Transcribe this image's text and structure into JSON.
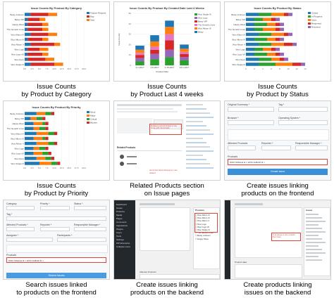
{
  "captions": [
    [
      "Issue Counts",
      "by Product by Category"
    ],
    [
      "Issue Counts",
      "by Product Last 4 weeks"
    ],
    [
      "Issue Counts",
      "by Product by Status"
    ],
    [
      "Issue Counts",
      "by Product by Priority"
    ],
    [
      "Related Products section",
      "on Issue pages"
    ],
    [
      "Create issues linking",
      "products on the frontend"
    ],
    [
      "Search issues linked",
      "to products on the frontend"
    ],
    [
      "Create issues linking",
      "products on the backend"
    ],
    [
      "Create products linking",
      "issues on the backend"
    ]
  ],
  "chart_data": [
    {
      "type": "bar",
      "orientation": "horizontal",
      "stacked": true,
      "title": "Issue Counts By Product By Category",
      "categories": [
        "Betsy Johnson",
        "Betsy VIP",
        "Happy Wear",
        "The Genetic Lives",
        "Wox Album III",
        "Wox Album IV",
        "Wox Album V",
        "Wox Logo",
        "Wox Logo VII",
        "Wox Nexx",
        "Wox Single III"
      ],
      "series": [
        {
          "name": "Feature Request",
          "color": "#1f77b4",
          "values": [
            2,
            1,
            1,
            1,
            2,
            1,
            2,
            1,
            1,
            1,
            2
          ]
        },
        {
          "name": "Bug",
          "color": "#d62728",
          "values": [
            6,
            4,
            5,
            5,
            6,
            5,
            8,
            4,
            5,
            6,
            8
          ]
        },
        {
          "name": "Task",
          "color": "#ff7f0e",
          "values": [
            3,
            2,
            2,
            2,
            3,
            2,
            2,
            3,
            2,
            3,
            3
          ]
        }
      ],
      "xlim": [
        0,
        20
      ],
      "xticks": [
        "0.0",
        "2.5",
        "5.0",
        "7.5",
        "10.0",
        "12.5",
        "15.0",
        "17.5",
        "20.0"
      ]
    },
    {
      "type": "bar",
      "stacked": true,
      "title": "Issue Counts By Product By Created Date Last 4 Weeks",
      "categories": [
        "4-1-2017",
        "4-8-2017",
        "4-15-2017",
        "10-1-2017"
      ],
      "series": [
        {
          "name": "Wox Single III",
          "color": "#2ca02c",
          "values": [
            4,
            6,
            8,
            5
          ]
        },
        {
          "name": "Wox Logo",
          "color": "#9467bd",
          "values": [
            3,
            5,
            7,
            3
          ]
        },
        {
          "name": "Betsy VIP",
          "color": "#d62728",
          "values": [
            3,
            4,
            9,
            3
          ]
        },
        {
          "name": "The Genetic Lives",
          "color": "#e377c2",
          "values": [
            2,
            3,
            6,
            2
          ]
        },
        {
          "name": "Wox Album III",
          "color": "#ff7f0e",
          "values": [
            3,
            5,
            7,
            3
          ]
        },
        {
          "name": "Betsy",
          "color": "#1f77b4",
          "values": [
            4,
            6,
            6,
            4
          ]
        }
      ],
      "ylim": [
        0,
        50
      ],
      "yticks": [
        "0",
        "10",
        "20",
        "30",
        "40",
        "50"
      ],
      "xlabel": "Created Date",
      "ylabel": "Issue Counts"
    },
    {
      "type": "bar",
      "orientation": "horizontal",
      "stacked": true,
      "title": "Issue Counts By Product By Status",
      "categories": [
        "Betsy Johnson",
        "Betsy VIP",
        "Happy Wear",
        "The Genetic Lives",
        "Wox Album III",
        "Wox Album IV",
        "Wox Album V",
        "Wox Logo",
        "Wox Logo VII",
        "Wox Nexx",
        "Wox Single III"
      ],
      "series": [
        {
          "name": "Closed",
          "color": "#1f77b4",
          "values": [
            3,
            2,
            2,
            2,
            3,
            2,
            3,
            2,
            2,
            3,
            3
          ]
        },
        {
          "name": "In Progress",
          "color": "#2ca02c",
          "values": [
            3,
            2,
            3,
            2,
            3,
            3,
            3,
            2,
            3,
            3,
            4
          ]
        },
        {
          "name": "Open",
          "color": "#ff7f0e",
          "values": [
            3,
            2,
            2,
            3,
            3,
            2,
            3,
            2,
            2,
            2,
            4
          ]
        },
        {
          "name": "Reopened",
          "color": "#d62728",
          "values": [
            1,
            1,
            1,
            1,
            1,
            1,
            2,
            1,
            1,
            1,
            2
          ]
        },
        {
          "name": "Resolved",
          "color": "#9467bd",
          "values": [
            1,
            1,
            1,
            1,
            1,
            1,
            1,
            1,
            1,
            1,
            1
          ]
        }
      ],
      "xlim": [
        0,
        14
      ],
      "xticks": [
        "0",
        "2",
        "4",
        "6",
        "8",
        "10",
        "12",
        "14"
      ]
    },
    {
      "type": "bar",
      "orientation": "horizontal",
      "stacked": true,
      "title": "Issue Counts By Product By Priority",
      "categories": [
        "Betsy Johnson",
        "Betsy VIP",
        "Happy Wear",
        "The Genetic Lives",
        "Wox Album III",
        "Wox Album IV",
        "Wox Album V",
        "Wox Logo",
        "Wox Logo VII",
        "Wox Nexx",
        "Wox Single III"
      ],
      "series": [
        {
          "name": "Minor",
          "color": "#1f77b4",
          "values": [
            4,
            2,
            3,
            3,
            4,
            3,
            4,
            3,
            3,
            4,
            5
          ]
        },
        {
          "name": "Major",
          "color": "#ff7f0e",
          "values": [
            3,
            2,
            3,
            2,
            4,
            3,
            4,
            2,
            3,
            3,
            4
          ]
        },
        {
          "name": "Critical",
          "color": "#2ca02c",
          "values": [
            2,
            2,
            1,
            2,
            2,
            1,
            2,
            2,
            2,
            2,
            2
          ]
        },
        {
          "name": "Blocker",
          "color": "#d62728",
          "values": [
            1,
            1,
            1,
            1,
            1,
            1,
            1,
            1,
            1,
            1,
            1
          ]
        }
      ],
      "xlim": [
        0,
        20
      ],
      "xticks": [
        "0.0",
        "2.5",
        "5.0",
        "7.5",
        "10.0",
        "12.5",
        "15.0",
        "17.5",
        "20.0"
      ]
    }
  ],
  "related_products": {
    "title": "Related Products",
    "annotation": "Related products linked to the issue with thumbnails",
    "note": "Items this Issue belongs to / are related"
  },
  "create_frontend": {
    "fields": [
      "Original Summary *",
      "Tag *",
      "Browser *",
      "Operating System *",
      "Affected Products",
      "Reporter *",
      "Responsible Manager *",
      "Products"
    ],
    "products_value": "WOX SINGLE III  × WOX ALBUM III ×",
    "submit_label": "Create Issue"
  },
  "search_frontend": {
    "fields": [
      "Category",
      "Priority *",
      "Status *",
      "Tag *",
      "Affected Products *",
      "Reporter *",
      "Responsible Manager *",
      "Assignee *",
      "Participants *",
      "Products"
    ],
    "products_value": "WOX SINGLE III × WOX ALBUM III ×",
    "submit_label": "Search Issues"
  },
  "create_backend": {
    "menu": [
      "Dashboard",
      "Issues",
      "Products",
      "Media",
      "Pages",
      "Comments",
      "Appearance",
      "Plugins",
      "Users",
      "Tools",
      "Settings",
      "WP Enterprise",
      "Collapse menu"
    ],
    "list_title": "Products",
    "list_items": [
      "Wox Album III",
      "Wox Album IV",
      "Wox Album V",
      "Wox Logo",
      "Wox Logo VII",
      "Wox Single III",
      "The Genetic Lives",
      "Betsy Johnson",
      "Happy Wear"
    ],
    "footer": "Affected Products"
  },
  "create_products_backend": {
    "annotation": "Link issues to the product from here",
    "section": "Issues",
    "footer": "Product data"
  }
}
